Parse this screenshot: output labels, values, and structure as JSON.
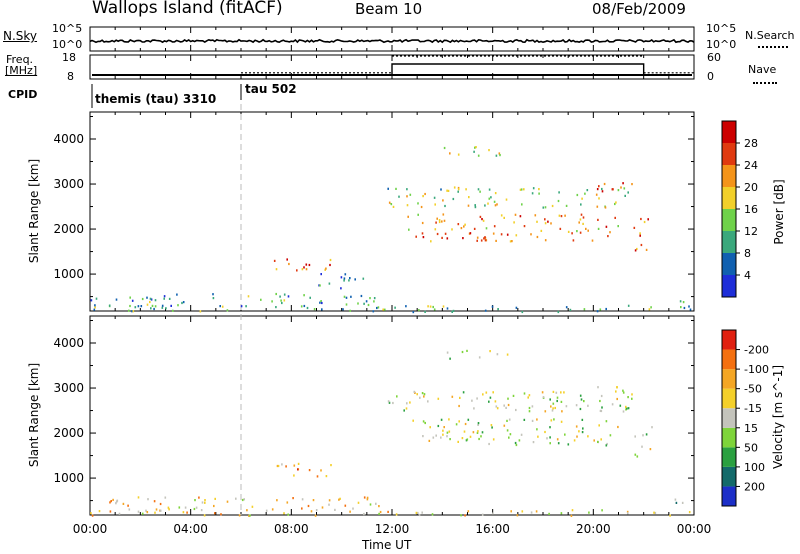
{
  "header": {
    "site": "Wallops Island (fitACF)",
    "beam": "Beam 10",
    "date": "08/Feb/2009"
  },
  "panels": {
    "nsky": {
      "label": "N.Sky",
      "tick_top": "10^5",
      "tick_bottom": "10^0",
      "right_label": "N.Search",
      "right_tick_top": "10^5",
      "right_tick_bottom": "10^0"
    },
    "freq": {
      "label_1": "Freq.",
      "label_2": "[MHz]",
      "tick_top": "18",
      "tick_bottom": "8",
      "right_label": "Nave",
      "right_tick_top": "60",
      "right_tick_bottom": "0",
      "freq_level_mhz": 10.5,
      "nave_segments": [
        {
          "from_hour": 0,
          "to_hour": 6,
          "value": null
        },
        {
          "from_hour": 6,
          "to_hour": 12,
          "value": 18
        },
        {
          "from_hour": 12,
          "to_hour": 22,
          "value": 60
        },
        {
          "from_hour": 22,
          "to_hour": 24,
          "value": 18
        }
      ]
    },
    "cpid": {
      "label": "CPID",
      "entries": [
        {
          "text": "themis (tau) 3310",
          "start_hour": 0
        },
        {
          "text": "tau 502",
          "start_hour": 6
        }
      ]
    }
  },
  "chart_data": [
    {
      "type": "heatmap",
      "id": "power",
      "ylabel": "Slant Range [km]",
      "ylim": [
        180,
        4600
      ],
      "yticks": [
        1000,
        2000,
        3000,
        4000
      ],
      "colorbar_label": "Power [dB]",
      "colorbar_ticks": [
        4,
        8,
        12,
        16,
        20,
        24,
        28
      ],
      "colors": [
        "#1e2ed8",
        "#1060b0",
        "#3aa87c",
        "#6fd24a",
        "#f2d02a",
        "#f4941a",
        "#e03a10",
        "#cc0000"
      ],
      "echo_regions": [
        {
          "t0": 0.0,
          "t1": 24.0,
          "r0": 180,
          "r1": 320,
          "level": 0.35
        },
        {
          "t0": 0.0,
          "t1": 11.5,
          "r0": 300,
          "r1": 600,
          "level": 0.3
        },
        {
          "t0": 7.2,
          "t1": 9.6,
          "r0": 1050,
          "r1": 1350,
          "level": 0.8
        },
        {
          "t0": 9.0,
          "t1": 11.0,
          "r0": 700,
          "r1": 1050,
          "level": 0.25
        },
        {
          "t0": 11.8,
          "t1": 21.6,
          "r0": 2500,
          "r1": 2950,
          "level": 0.45
        },
        {
          "t0": 12.6,
          "t1": 21.0,
          "r0": 1750,
          "r1": 2350,
          "level": 0.7
        },
        {
          "t0": 20.0,
          "t1": 21.6,
          "r0": 2750,
          "r1": 3050,
          "level": 0.85
        },
        {
          "t0": 14.0,
          "t1": 16.6,
          "r0": 3650,
          "r1": 3850,
          "level": 0.45
        },
        {
          "t0": 21.5,
          "t1": 22.3,
          "r0": 1500,
          "r1": 2250,
          "level": 0.75
        },
        {
          "t0": 23.0,
          "t1": 23.8,
          "r0": 380,
          "r1": 560,
          "level": 0.55
        }
      ]
    },
    {
      "type": "heatmap",
      "id": "velocity",
      "ylabel": "Slant Range [km]",
      "ylim": [
        180,
        4600
      ],
      "yticks": [
        1000,
        2000,
        3000,
        4000
      ],
      "xlabel": "Time UT",
      "xticks": [
        "00:00",
        "04:00",
        "08:00",
        "12:00",
        "16:00",
        "20:00",
        "00:00"
      ],
      "colorbar_label": "Velocity [m s^-1]",
      "colorbar_ticks": [
        200,
        100,
        50,
        15,
        -15,
        -50,
        -100,
        -200
      ],
      "colors": [
        "#1c2fc8",
        "#136a6a",
        "#2aa040",
        "#7ed43a",
        "#c4c4bc",
        "#f4d02a",
        "#f4a624",
        "#f47010",
        "#e02010"
      ],
      "echo_regions": [
        {
          "t0": 0.0,
          "t1": 24.0,
          "r0": 180,
          "r1": 320,
          "level": 0.6
        },
        {
          "t0": 0.0,
          "t1": 11.5,
          "r0": 300,
          "r1": 600,
          "level": 0.62
        },
        {
          "t0": 7.2,
          "t1": 9.6,
          "r0": 1050,
          "r1": 1350,
          "level": 0.68
        },
        {
          "t0": 11.8,
          "t1": 21.6,
          "r0": 2500,
          "r1": 2950,
          "level": 0.5
        },
        {
          "t0": 12.6,
          "t1": 21.0,
          "r0": 1750,
          "r1": 2350,
          "level": 0.5
        },
        {
          "t0": 20.0,
          "t1": 21.6,
          "r0": 2750,
          "r1": 3050,
          "level": 0.5
        },
        {
          "t0": 14.0,
          "t1": 16.6,
          "r0": 3650,
          "r1": 3850,
          "level": 0.5
        },
        {
          "t0": 21.5,
          "t1": 22.3,
          "r0": 1500,
          "r1": 2250,
          "level": 0.5
        },
        {
          "t0": 23.0,
          "t1": 23.8,
          "r0": 380,
          "r1": 560,
          "level": 0.3
        }
      ]
    }
  ]
}
